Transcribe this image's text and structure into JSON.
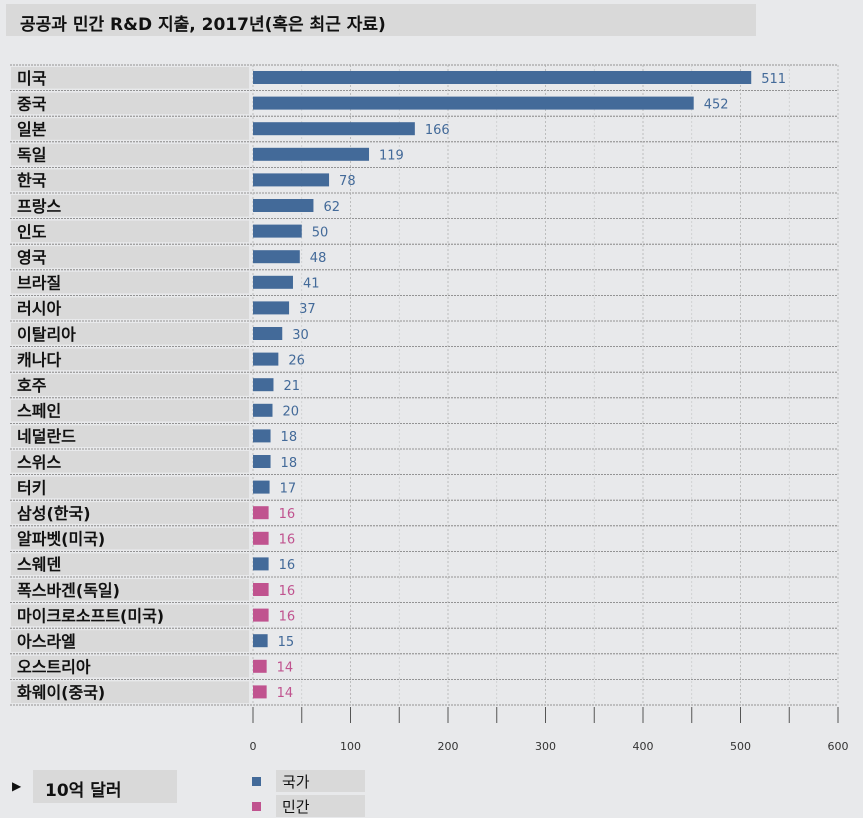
{
  "chart_data": {
    "type": "bar",
    "title": "공공과 민간 R&D 지출, 2017년(혹은 최근 자료)",
    "unit": "10억 달러",
    "xlim": [
      0,
      600
    ],
    "x_ticks": [
      0,
      100,
      200,
      300,
      400,
      500,
      600
    ],
    "orientation": "horizontal",
    "grid": true,
    "legend_position": "bottom",
    "colors": {
      "국가": "#436a99",
      "민간": "#c0538f"
    },
    "series_names": [
      "국가",
      "민간"
    ],
    "categories": [
      "미국",
      "중국",
      "일본",
      "독일",
      "한국",
      "프랑스",
      "인도",
      "영국",
      "브라질",
      "러시아",
      "이탈리아",
      "캐나다",
      "호주",
      "스페인",
      "네덜란드",
      "스위스",
      "터키",
      "삼성(한국)",
      "알파벳(미국)",
      "스웨덴",
      "폭스바겐(독일)",
      "마이크로소프트(미국)",
      "아스라엘",
      "오스트리아",
      "화웨이(중국)"
    ],
    "values": [
      511,
      452,
      166,
      119,
      78,
      62,
      50,
      48,
      41,
      37,
      30,
      26,
      21,
      20,
      18,
      18,
      17,
      16,
      16,
      16,
      16,
      16,
      15,
      14,
      14
    ],
    "series_of": [
      "국가",
      "국가",
      "국가",
      "국가",
      "국가",
      "국가",
      "국가",
      "국가",
      "국가",
      "국가",
      "국가",
      "국가",
      "국가",
      "국가",
      "국가",
      "국가",
      "국가",
      "민간",
      "민간",
      "국가",
      "민간",
      "민간",
      "국가",
      "민간",
      "민간"
    ]
  },
  "legend": {
    "items": [
      {
        "label": "국가",
        "color": "#436a99"
      },
      {
        "label": "민간",
        "color": "#c0538f"
      }
    ]
  }
}
